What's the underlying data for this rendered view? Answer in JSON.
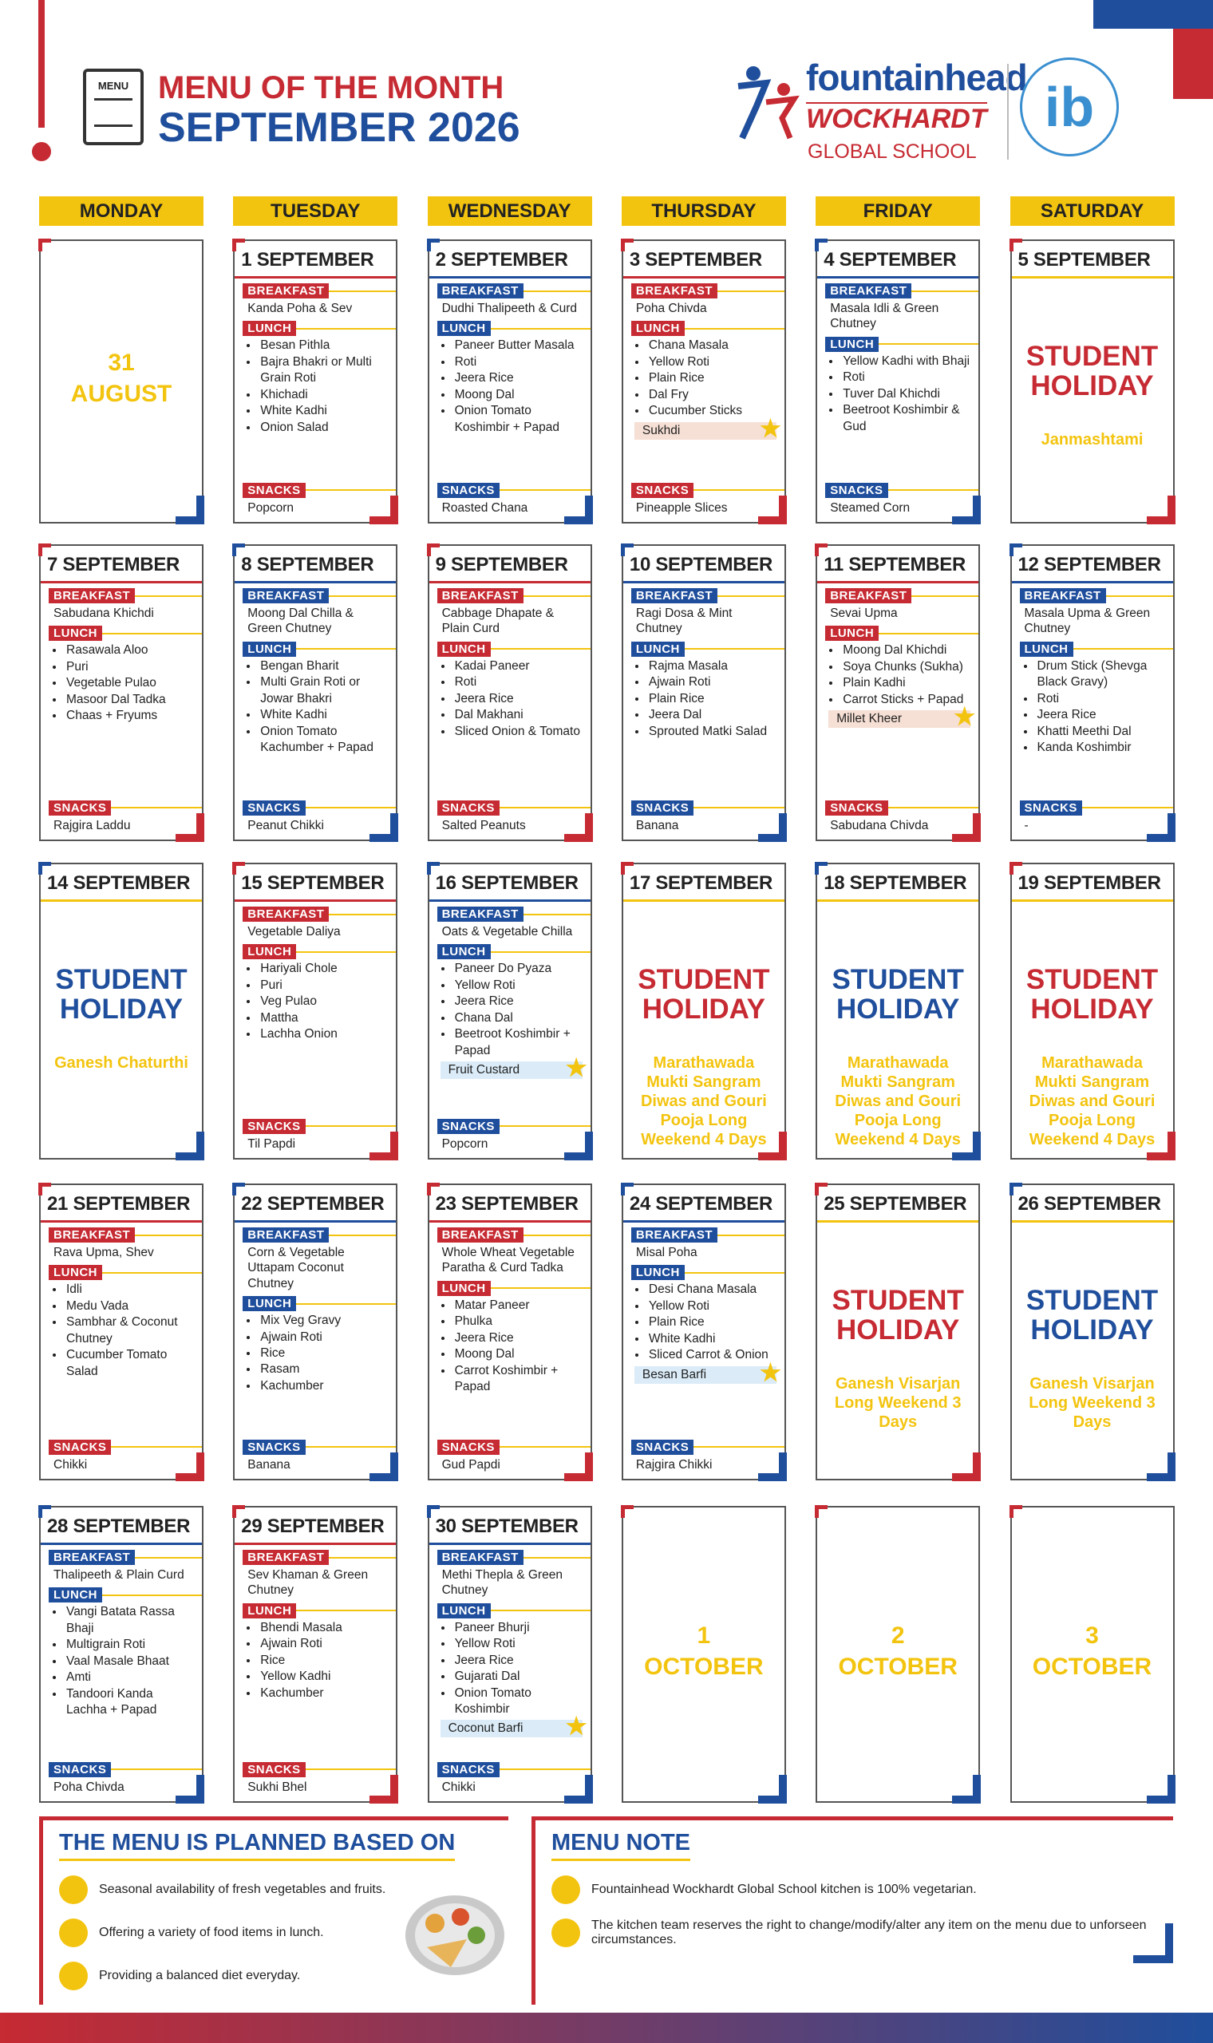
{
  "header": {
    "icon_label": "MENU",
    "title_line1": "MENU OF THE MONTH",
    "title_line2": "SEPTEMBER 2026",
    "school_name": "fountainhead",
    "school_sub": "WOCKHARDT",
    "school_tag": "GLOBAL SCHOOL",
    "ib": "ib"
  },
  "labels": {
    "breakfast": "BREAKFAST",
    "lunch": "LUNCH",
    "snacks": "SNACKS"
  },
  "days": [
    "MONDAY",
    "TUESDAY",
    "WEDNESDAY",
    "THURSDAY",
    "FRIDAY",
    "SATURDAY"
  ],
  "weeks": [
    [
      {
        "type": "outside",
        "day": "31",
        "month": "AUGUST"
      },
      {
        "type": "menu",
        "date": "1 SEPTEMBER",
        "breakfast": "Kanda Poha & Sev",
        "lunch": [
          "Besan Pithla",
          "Bajra Bhakri or Multi Grain Roti",
          "Khichadi",
          "White Kadhi",
          "Onion Salad"
        ],
        "snacks": "Popcorn"
      },
      {
        "type": "menu",
        "date": "2 SEPTEMBER",
        "breakfast": "Dudhi Thalipeeth & Curd",
        "lunch": [
          "Paneer Butter Masala",
          "Roti",
          "Jeera Rice",
          "Moong Dal",
          "Onion Tomato Koshimbir + Papad"
        ],
        "snacks": "Roasted Chana"
      },
      {
        "type": "menu",
        "date": "3 SEPTEMBER",
        "breakfast": "Poha Chivda",
        "lunch": [
          "Chana Masala",
          "Yellow Roti",
          "Plain Rice",
          "Dal Fry",
          "Cucumber Sticks"
        ],
        "special": "Sukhdi",
        "special_color": "#f6dfd4",
        "snacks": "Pineapple Slices"
      },
      {
        "type": "menu",
        "date": "4 SEPTEMBER",
        "breakfast": "Masala Idli & Green Chutney",
        "lunch": [
          "Yellow Kadhi with Bhaji",
          "Roti",
          "Tuver Dal Khichdi",
          "Beetroot Koshimbir & Gud"
        ],
        "snacks": "Steamed Corn"
      },
      {
        "type": "holiday",
        "date": "5 SEPTEMBER",
        "title": "STUDENT HOLIDAY",
        "color": "#c62a32",
        "note": "Janmashtami"
      }
    ],
    [
      {
        "type": "menu",
        "date": "7 SEPTEMBER",
        "breakfast": "Sabudana Khichdi",
        "lunch": [
          "Rasawala Aloo",
          "Puri",
          "Vegetable Pulao",
          "Masoor Dal Tadka",
          "Chaas + Fryums"
        ],
        "snacks": "Rajgira Laddu"
      },
      {
        "type": "menu",
        "date": "8 SEPTEMBER",
        "breakfast": "Moong Dal Chilla & Green Chutney",
        "lunch": [
          "Bengan Bharit",
          "Multi Grain Roti or Jowar Bhakri",
          "White Kadhi",
          "Onion Tomato Kachumber + Papad"
        ],
        "snacks": "Peanut Chikki"
      },
      {
        "type": "menu",
        "date": "9 SEPTEMBER",
        "breakfast": "Cabbage Dhapate & Plain Curd",
        "lunch": [
          "Kadai Paneer",
          "Roti",
          "Jeera Rice",
          "Dal Makhani",
          "Sliced Onion & Tomato"
        ],
        "snacks": "Salted Peanuts"
      },
      {
        "type": "menu",
        "date": "10 SEPTEMBER",
        "breakfast": "Ragi Dosa & Mint Chutney",
        "lunch": [
          "Rajma Masala",
          "Ajwain Roti",
          "Plain Rice",
          "Jeera Dal",
          "Sprouted Matki Salad"
        ],
        "snacks": "Banana"
      },
      {
        "type": "menu",
        "date": "11 SEPTEMBER",
        "breakfast": "Sevai Upma",
        "lunch": [
          "Moong Dal Khichdi",
          "Soya Chunks (Sukha)",
          "Plain Kadhi",
          "Carrot Sticks + Papad"
        ],
        "special": "Millet Kheer",
        "special_color": "#f6dfd4",
        "snacks": "Sabudana Chivda"
      },
      {
        "type": "menu",
        "date": "12 SEPTEMBER",
        "breakfast": "Masala Upma & Green Chutney",
        "lunch": [
          "Drum Stick (Shevga Black Gravy)",
          "Roti",
          "Jeera Rice",
          "Khatti Meethi Dal",
          "Kanda Koshimbir"
        ],
        "snacks": "-"
      }
    ],
    [
      {
        "type": "holiday",
        "date": "14 SEPTEMBER",
        "title": "STUDENT HOLIDAY",
        "color": "#1f4e9c",
        "note": "Ganesh Chaturthi"
      },
      {
        "type": "menu",
        "date": "15 SEPTEMBER",
        "breakfast": "Vegetable Daliya",
        "lunch": [
          "Hariyali Chole",
          "Puri",
          "Veg Pulao",
          "Mattha",
          "Lachha Onion"
        ],
        "snacks": "Til Papdi"
      },
      {
        "type": "menu",
        "date": "16 SEPTEMBER",
        "breakfast": "Oats & Vegetable Chilla",
        "lunch": [
          "Paneer Do Pyaza",
          "Yellow Roti",
          "Jeera Rice",
          "Chana Dal",
          "Beetroot Koshimbir + Papad"
        ],
        "special": "Fruit Custard",
        "special_color": "#dbecf8",
        "snacks": "Popcorn"
      },
      {
        "type": "holiday",
        "date": "17 SEPTEMBER",
        "title": "STUDENT HOLIDAY",
        "color": "#c62a32",
        "note": "Marathawada Mukti Sangram Diwas and Gouri Pooja Long Weekend 4 Days"
      },
      {
        "type": "holiday",
        "date": "18 SEPTEMBER",
        "title": "STUDENT HOLIDAY",
        "color": "#1f4e9c",
        "note": "Marathawada Mukti Sangram Diwas and Gouri Pooja Long Weekend 4 Days"
      },
      {
        "type": "holiday",
        "date": "19 SEPTEMBER",
        "title": "STUDENT HOLIDAY",
        "color": "#c62a32",
        "note": "Marathawada Mukti Sangram Diwas and Gouri Pooja Long Weekend 4 Days"
      }
    ],
    [
      {
        "type": "menu",
        "date": "21 SEPTEMBER",
        "breakfast": "Rava Upma, Shev",
        "lunch": [
          "Idli",
          "Medu Vada",
          "Sambhar & Coconut Chutney",
          "Cucumber Tomato Salad"
        ],
        "snacks": "Chikki"
      },
      {
        "type": "menu",
        "date": "22 SEPTEMBER",
        "breakfast": "Corn & Vegetable Uttapam Coconut Chutney",
        "lunch": [
          "Mix Veg Gravy",
          "Ajwain Roti",
          "Rice",
          "Rasam",
          "Kachumber"
        ],
        "snacks": "Banana"
      },
      {
        "type": "menu",
        "date": "23 SEPTEMBER",
        "breakfast": "Whole Wheat Vegetable Paratha & Curd Tadka",
        "lunch": [
          "Matar Paneer",
          "Phulka",
          "Jeera Rice",
          "Moong Dal",
          "Carrot Koshimbir + Papad"
        ],
        "snacks": "Gud Papdi"
      },
      {
        "type": "menu",
        "date": "24 SEPTEMBER",
        "breakfast": "Misal Poha",
        "lunch": [
          "Desi Chana Masala",
          "Yellow Roti",
          "Plain Rice",
          "White Kadhi",
          "Sliced Carrot & Onion"
        ],
        "special": "Besan Barfi",
        "special_color": "#dbecf8",
        "snacks": "Rajgira Chikki"
      },
      {
        "type": "holiday",
        "date": "25 SEPTEMBER",
        "title": "STUDENT HOLIDAY",
        "color": "#c62a32",
        "note": "Ganesh Visarjan Long Weekend 3 Days"
      },
      {
        "type": "holiday",
        "date": "26 SEPTEMBER",
        "title": "STUDENT HOLIDAY",
        "color": "#1f4e9c",
        "note": "Ganesh Visarjan Long Weekend 3 Days"
      }
    ],
    [
      {
        "type": "menu",
        "date": "28 SEPTEMBER",
        "breakfast": "Thalipeeth & Plain Curd",
        "lunch": [
          "Vangi Batata Rassa Bhaji",
          "Multigrain Roti",
          "Vaal Masale Bhaat",
          "Amti",
          "Tandoori Kanda Lachha + Papad"
        ],
        "snacks": "Poha Chivda"
      },
      {
        "type": "menu",
        "date": "29 SEPTEMBER",
        "breakfast": "Sev Khaman & Green Chutney",
        "lunch": [
          "Bhendi Masala",
          "Ajwain Roti",
          "Rice",
          "Yellow Kadhi",
          "Kachumber"
        ],
        "snacks": "Sukhi Bhel"
      },
      {
        "type": "menu",
        "date": "30 SEPTEMBER",
        "breakfast": "Methi Thepla & Green Chutney",
        "lunch": [
          "Paneer Bhurji",
          "Yellow Roti",
          "Jeera Rice",
          "Gujarati Dal",
          "Onion Tomato Koshimbir"
        ],
        "special": "Coconut Barfi",
        "special_color": "#dbecf8",
        "snacks": "Chikki"
      },
      {
        "type": "outside",
        "day": "1",
        "month": "OCTOBER"
      },
      {
        "type": "outside",
        "day": "2",
        "month": "OCTOBER"
      },
      {
        "type": "outside",
        "day": "3",
        "month": "OCTOBER"
      }
    ]
  ],
  "footer": {
    "planned": {
      "title": "THE MENU IS PLANNED BASED ON",
      "items": [
        "Seasonal availability of fresh vegetables and fruits.",
        "Offering a variety of food items in lunch.",
        "Providing a balanced diet everyday."
      ]
    },
    "note": {
      "title": "MENU NOTE",
      "items": [
        "Fountainhead Wockhardt Global School kitchen is 100% vegetarian.",
        "The kitchen team reserves the right to change/modify/alter any item on the menu due to unforseen circumstances."
      ]
    }
  }
}
